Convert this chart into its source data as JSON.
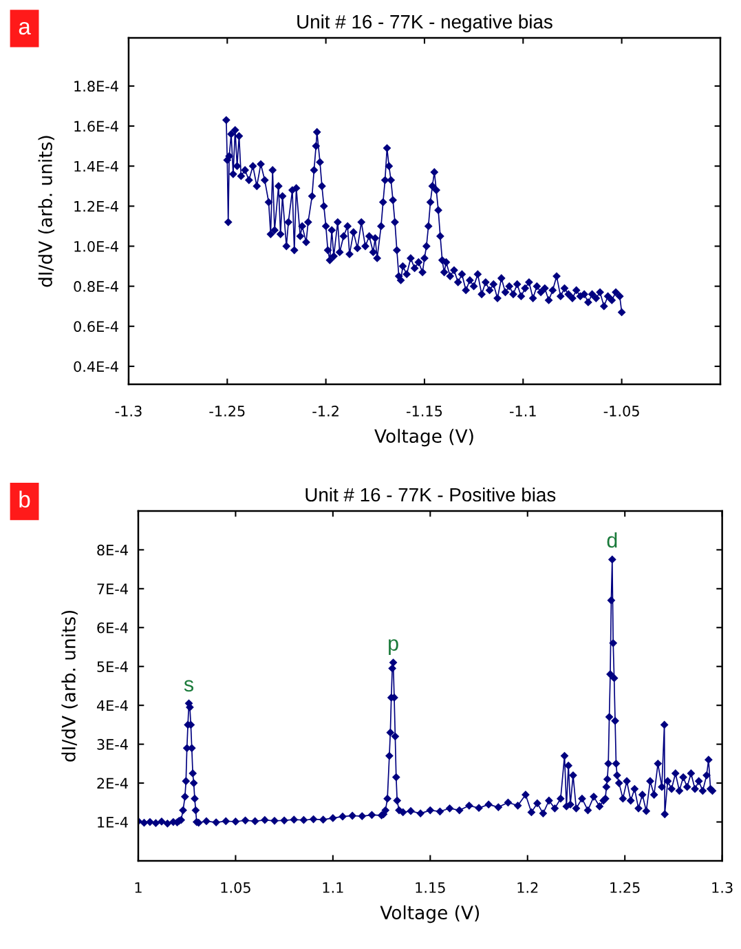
{
  "chart_data": [
    {
      "type": "line",
      "title": "Unit # 16 - 77K - negative bias",
      "xlabel": "Voltage (V)",
      "ylabel": "dI/dV (arb. units)",
      "annotations": [
        "a"
      ],
      "marker": "diamond",
      "line_style": "solid",
      "xlim": [
        -1.3,
        -1.0
      ],
      "xticks": [
        {
          "value": -1.3,
          "label": "-1.3"
        },
        {
          "value": -1.25,
          "label": "-1.25"
        },
        {
          "value": -1.2,
          "label": "-1.2"
        },
        {
          "value": -1.15,
          "label": "-1.15"
        },
        {
          "value": -1.1,
          "label": "-1.1"
        },
        {
          "value": -1.05,
          "label": "-1.05"
        }
      ],
      "ylim": [
        3.1e-05,
        0.000204
      ],
      "yticks": [
        {
          "value": 4e-05,
          "label": "0.4E-4"
        },
        {
          "value": 6e-05,
          "label": "0.6E-4"
        },
        {
          "value": 8e-05,
          "label": "0.8E-4"
        },
        {
          "value": 0.0001,
          "label": "1.0E-4"
        },
        {
          "value": 0.00012,
          "label": "1.2E-4"
        },
        {
          "value": 0.00014,
          "label": "1.4E-4"
        },
        {
          "value": 0.00016,
          "label": "1.6E-4"
        },
        {
          "value": 0.00018,
          "label": "1.8E-4"
        }
      ],
      "series": [
        {
          "color": "#000080",
          "x": [
            -1.2505,
            -1.25,
            -1.2495,
            -1.249,
            -1.248,
            -1.247,
            -1.246,
            -1.245,
            -1.244,
            -1.243,
            -1.241,
            -1.239,
            -1.237,
            -1.235,
            -1.233,
            -1.231,
            -1.229,
            -1.228,
            -1.227,
            -1.226,
            -1.224,
            -1.223,
            -1.222,
            -1.22,
            -1.219,
            -1.217,
            -1.216,
            -1.215,
            -1.213,
            -1.212,
            -1.21,
            -1.209,
            -1.207,
            -1.206,
            -1.205,
            -1.2045,
            -1.203,
            -1.202,
            -1.201,
            -1.2,
            -1.199,
            -1.198,
            -1.197,
            -1.196,
            -1.194,
            -1.193,
            -1.191,
            -1.189,
            -1.188,
            -1.186,
            -1.184,
            -1.182,
            -1.18,
            -1.178,
            -1.176,
            -1.175,
            -1.174,
            -1.172,
            -1.171,
            -1.17,
            -1.169,
            -1.168,
            -1.167,
            -1.166,
            -1.165,
            -1.164,
            -1.163,
            -1.162,
            -1.161,
            -1.159,
            -1.157,
            -1.155,
            -1.153,
            -1.151,
            -1.15,
            -1.149,
            -1.148,
            -1.147,
            -1.146,
            -1.145,
            -1.144,
            -1.143,
            -1.142,
            -1.141,
            -1.14,
            -1.139,
            -1.137,
            -1.135,
            -1.133,
            -1.131,
            -1.129,
            -1.127,
            -1.125,
            -1.123,
            -1.121,
            -1.119,
            -1.117,
            -1.115,
            -1.113,
            -1.111,
            -1.109,
            -1.107,
            -1.105,
            -1.103,
            -1.101,
            -1.099,
            -1.097,
            -1.095,
            -1.093,
            -1.091,
            -1.089,
            -1.087,
            -1.085,
            -1.083,
            -1.081,
            -1.079,
            -1.077,
            -1.075,
            -1.073,
            -1.071,
            -1.069,
            -1.067,
            -1.065,
            -1.063,
            -1.061,
            -1.059,
            -1.057,
            -1.055,
            -1.053,
            -1.051,
            -1.05
          ],
          "values": [
            0.000163,
            0.000143,
            0.000112,
            0.000145,
            0.000156,
            0.000136,
            0.000158,
            0.00014,
            0.000155,
            0.000135,
            0.000138,
            0.000133,
            0.00014,
            0.00013,
            0.000141,
            0.000133,
            0.000122,
            0.000106,
            0.000138,
            0.000108,
            0.00013,
            0.000106,
            0.000125,
            0.0001,
            0.000112,
            0.000128,
            9.8e-05,
            0.000129,
            0.000105,
            0.00011,
            0.000102,
            0.000112,
            0.000125,
            0.000138,
            0.00015,
            0.000157,
            0.000142,
            0.00013,
            0.00012,
            0.00011,
            9.8e-05,
            9.3e-05,
            0.000108,
            9.5e-05,
            0.000112,
            9.7e-05,
            0.000105,
            0.00011,
            9.6e-05,
            0.000107,
            9.9e-05,
            0.000112,
            0.0001,
            0.000105,
            9.7e-05,
            0.000104,
            9.4e-05,
            0.00011,
            0.000122,
            0.000133,
            0.000149,
            0.00014,
            0.000133,
            0.000123,
            0.000112,
            9.8e-05,
            8.5e-05,
            8.3e-05,
            9e-05,
            8.6e-05,
            9.4e-05,
            8.9e-05,
            9.2e-05,
            8.7e-05,
            9.4e-05,
            0.0001,
            0.00011,
            0.000122,
            0.00013,
            0.000137,
            0.000128,
            0.000118,
            0.000105,
            9.3e-05,
            8.7e-05,
            9.2e-05,
            8.5e-05,
            8.8e-05,
            8.2e-05,
            8.6e-05,
            7.8e-05,
            8.3e-05,
            8e-05,
            8.6e-05,
            7.6e-05,
            8.2e-05,
            7.8e-05,
            8.1e-05,
            7.4e-05,
            8.4e-05,
            7.7e-05,
            8e-05,
            7.6e-05,
            8.1e-05,
            7.5e-05,
            7.9e-05,
            8.2e-05,
            7.4e-05,
            8e-05,
            7.7e-05,
            7.9e-05,
            7.3e-05,
            7.8e-05,
            8.5e-05,
            7.5e-05,
            7.9e-05,
            7.6e-05,
            7.4e-05,
            7.8e-05,
            7.5e-05,
            7.6e-05,
            7.2e-05,
            7.6e-05,
            7.4e-05,
            7.7e-05,
            7e-05,
            7.5e-05,
            7.3e-05,
            7.7e-05,
            7.5e-05,
            6.7e-05
          ]
        }
      ]
    },
    {
      "type": "line",
      "title": "Unit # 16 - 77K - Positive bias",
      "xlabel": "Voltage (V)",
      "ylabel": "dI/dV (arb. units)",
      "marker": "diamond",
      "line_style": "solid",
      "annotations": [
        "b",
        {
          "text": "s",
          "x": 1.026,
          "y": 0.000405
        },
        {
          "text": "p",
          "x": 1.131,
          "y": 0.00051
        },
        {
          "text": "d",
          "x": 1.2435,
          "y": 0.000775
        }
      ],
      "xlim": [
        1.0,
        1.3
      ],
      "xticks": [
        1,
        1.05,
        1.1,
        1.15,
        1.2,
        1.25,
        1.3
      ],
      "ylim": [
        0,
        0.0009
      ],
      "yticks": [
        {
          "value": 0.0001,
          "label": "1E-4"
        },
        {
          "value": 0.0002,
          "label": "2E-4"
        },
        {
          "value": 0.0003,
          "label": "3E-4"
        },
        {
          "value": 0.0004,
          "label": "4E-4"
        },
        {
          "value": 0.0005,
          "label": "5E-4"
        },
        {
          "value": 0.0006,
          "label": "6E-4"
        },
        {
          "value": 0.0007,
          "label": "7E-4"
        },
        {
          "value": 0.0008,
          "label": "8E-4"
        }
      ],
      "series": [
        {
          "color": "#000080",
          "x": [
            1.0,
            1.003,
            1.006,
            1.009,
            1.012,
            1.015,
            1.018,
            1.02,
            1.021,
            1.022,
            1.023,
            1.024,
            1.0245,
            1.025,
            1.0255,
            1.026,
            1.0265,
            1.027,
            1.0275,
            1.028,
            1.0285,
            1.029,
            1.0295,
            1.03,
            1.031,
            1.035,
            1.04,
            1.045,
            1.05,
            1.055,
            1.06,
            1.065,
            1.07,
            1.075,
            1.08,
            1.085,
            1.09,
            1.095,
            1.1,
            1.105,
            1.11,
            1.115,
            1.12,
            1.125,
            1.126,
            1.127,
            1.128,
            1.129,
            1.1295,
            1.13,
            1.1305,
            1.131,
            1.1315,
            1.132,
            1.1325,
            1.133,
            1.134,
            1.136,
            1.14,
            1.145,
            1.15,
            1.155,
            1.16,
            1.165,
            1.17,
            1.175,
            1.18,
            1.185,
            1.19,
            1.195,
            1.199,
            1.202,
            1.205,
            1.208,
            1.211,
            1.214,
            1.217,
            1.219,
            1.22,
            1.221,
            1.222,
            1.2234,
            1.225,
            1.228,
            1.231,
            1.234,
            1.237,
            1.239,
            1.24,
            1.2405,
            1.241,
            1.2415,
            1.242,
            1.2425,
            1.243,
            1.2435,
            1.244,
            1.2445,
            1.245,
            1.2455,
            1.246,
            1.247,
            1.249,
            1.251,
            1.253,
            1.255,
            1.257,
            1.259,
            1.261,
            1.263,
            1.265,
            1.267,
            1.269,
            1.2703,
            1.2705,
            1.272,
            1.274,
            1.276,
            1.278,
            1.28,
            1.282,
            1.284,
            1.286,
            1.288,
            1.29,
            1.292,
            1.293,
            1.294,
            1.295
          ],
          "values": [
            0.000102,
            9.8e-05,
            0.0001,
            9.7e-05,
            0.000101,
            9.6e-05,
            0.0001,
            9.9e-05,
            0.000103,
            0.000105,
            0.00013,
            0.000165,
            0.000205,
            0.00029,
            0.00035,
            0.000405,
            0.000395,
            0.00035,
            0.00029,
            0.000225,
            0.0002,
            0.00016,
            0.00013,
            0.0001,
            9.8e-05,
            0.000102,
            9.9e-05,
            0.000102,
            0.000101,
            0.000104,
            0.000102,
            0.000105,
            0.000103,
            0.000104,
            0.000106,
            0.000105,
            0.000107,
            0.000106,
            0.00011,
            0.000114,
            0.000116,
            0.000115,
            0.000118,
            0.000117,
            0.00012,
            0.00013,
            0.00016,
            0.00027,
            0.00033,
            0.00042,
            0.000495,
            0.00051,
            0.00042,
            0.00032,
            0.000215,
            0.000155,
            0.00013,
            0.000125,
            0.000128,
            0.000122,
            0.00013,
            0.000127,
            0.000135,
            0.00013,
            0.000142,
            0.000136,
            0.000145,
            0.000138,
            0.00015,
            0.000142,
            0.00017,
            0.000125,
            0.000148,
            0.000122,
            0.000155,
            0.000135,
            0.00016,
            0.00027,
            0.00014,
            0.000245,
            0.000145,
            0.00022,
            0.000135,
            0.00016,
            0.00013,
            0.000165,
            0.00014,
            0.000155,
            0.00016,
            0.00019,
            0.00021,
            0.00025,
            0.00037,
            0.00048,
            0.00067,
            0.000775,
            0.00056,
            0.00047,
            0.00036,
            0.00025,
            0.00022,
            0.0002,
            0.00016,
            0.000205,
            0.000155,
            0.000185,
            0.000135,
            0.00017,
            0.000128,
            0.000205,
            0.00017,
            0.00025,
            0.00019,
            0.00035,
            0.00012,
            0.000205,
            0.000185,
            0.000225,
            0.00018,
            0.000215,
            0.00019,
            0.000225,
            0.000185,
            0.000205,
            0.00018,
            0.00022,
            0.00026,
            0.000185,
            0.00018
          ]
        }
      ]
    }
  ]
}
